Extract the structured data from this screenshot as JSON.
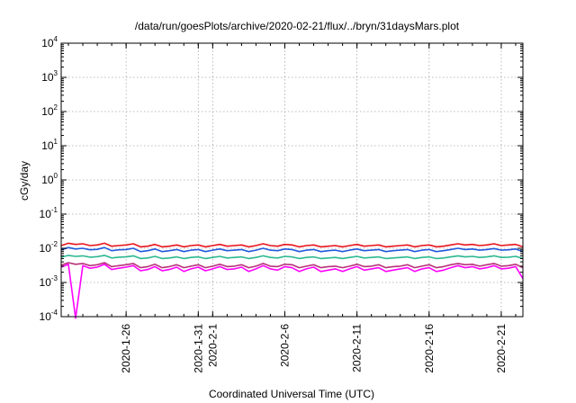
{
  "chart_data": {
    "type": "line",
    "title": "/data/run/goesPlots/archive/2020-02-21/flux/../bryn/31daysMars.plot",
    "xlabel": "Coordinated Universal Time (UTC)",
    "ylabel": "cGy/day",
    "yscale": "log",
    "ylim": [
      0.0001,
      10000
    ],
    "xlim": [
      "2020-01-21T12:00",
      "2020-02-22T12:00"
    ],
    "grid": true,
    "legend": "none",
    "y_ticks": [
      {
        "base": "10",
        "exp": "-4",
        "value": 0.0001
      },
      {
        "base": "10",
        "exp": "-3",
        "value": 0.001
      },
      {
        "base": "10",
        "exp": "-2",
        "value": 0.01
      },
      {
        "base": "10",
        "exp": "-1",
        "value": 0.1
      },
      {
        "base": "10",
        "exp": "0",
        "value": 1
      },
      {
        "base": "10",
        "exp": "1",
        "value": 10
      },
      {
        "base": "10",
        "exp": "2",
        "value": 100
      },
      {
        "base": "10",
        "exp": "3",
        "value": 1000
      },
      {
        "base": "10",
        "exp": "4",
        "value": 10000
      }
    ],
    "x_ticks": [
      {
        "label": "2020-1-26",
        "date": "2020-01-26"
      },
      {
        "label": "2020-1-31",
        "date": "2020-01-31"
      },
      {
        "label": "2020-2-1",
        "date": "2020-02-01"
      },
      {
        "label": "2020-2-6",
        "date": "2020-02-06"
      },
      {
        "label": "2020-2-11",
        "date": "2020-02-11"
      },
      {
        "label": "2020-2-16",
        "date": "2020-02-16"
      },
      {
        "label": "2020-2-21",
        "date": "2020-02-21"
      }
    ],
    "x": [
      "2020-01-21T12:00",
      "2020-01-22T00:00",
      "2020-01-22T12:00",
      "2020-01-23T00:00",
      "2020-01-23T12:00",
      "2020-01-24T00:00",
      "2020-01-24T12:00",
      "2020-01-25T00:00",
      "2020-01-25T12:00",
      "2020-01-26T00:00",
      "2020-01-26T12:00",
      "2020-01-27T00:00",
      "2020-01-27T12:00",
      "2020-01-28T00:00",
      "2020-01-28T12:00",
      "2020-01-29T00:00",
      "2020-01-29T12:00",
      "2020-01-30T00:00",
      "2020-01-30T12:00",
      "2020-01-31T00:00",
      "2020-01-31T12:00",
      "2020-02-01T00:00",
      "2020-02-01T12:00",
      "2020-02-02T00:00",
      "2020-02-02T12:00",
      "2020-02-03T00:00",
      "2020-02-03T12:00",
      "2020-02-04T00:00",
      "2020-02-04T12:00",
      "2020-02-05T00:00",
      "2020-02-05T12:00",
      "2020-02-06T00:00",
      "2020-02-06T12:00",
      "2020-02-07T00:00",
      "2020-02-07T12:00",
      "2020-02-08T00:00",
      "2020-02-08T12:00",
      "2020-02-09T00:00",
      "2020-02-09T12:00",
      "2020-02-10T00:00",
      "2020-02-10T12:00",
      "2020-02-11T00:00",
      "2020-02-11T12:00",
      "2020-02-12T00:00",
      "2020-02-12T12:00",
      "2020-02-13T00:00",
      "2020-02-13T12:00",
      "2020-02-14T00:00",
      "2020-02-14T12:00",
      "2020-02-15T00:00",
      "2020-02-15T12:00",
      "2020-02-16T00:00",
      "2020-02-16T12:00",
      "2020-02-17T00:00",
      "2020-02-17T12:00",
      "2020-02-18T00:00",
      "2020-02-18T12:00",
      "2020-02-19T00:00",
      "2020-02-19T12:00",
      "2020-02-20T00:00",
      "2020-02-20T12:00",
      "2020-02-21T00:00",
      "2020-02-21T12:00",
      "2020-02-22T00:00",
      "2020-02-22T12:00"
    ],
    "series": [
      {
        "color": "#e8141c",
        "values": [
          0.012,
          0.014,
          0.013,
          0.0135,
          0.012,
          0.0125,
          0.014,
          0.0115,
          0.012,
          0.0125,
          0.0135,
          0.011,
          0.0115,
          0.013,
          0.011,
          0.0115,
          0.0125,
          0.011,
          0.012,
          0.0125,
          0.011,
          0.012,
          0.013,
          0.0115,
          0.012,
          0.0125,
          0.011,
          0.012,
          0.0135,
          0.012,
          0.0115,
          0.013,
          0.0125,
          0.011,
          0.012,
          0.0125,
          0.011,
          0.0115,
          0.012,
          0.011,
          0.012,
          0.013,
          0.0115,
          0.012,
          0.0125,
          0.011,
          0.0115,
          0.012,
          0.0125,
          0.011,
          0.012,
          0.0125,
          0.011,
          0.0115,
          0.0125,
          0.0135,
          0.0125,
          0.013,
          0.012,
          0.0125,
          0.0135,
          0.012,
          0.0125,
          0.013,
          0.011
        ]
      },
      {
        "color": "#1f5adc",
        "values": [
          0.009,
          0.0105,
          0.0095,
          0.01,
          0.009,
          0.0093,
          0.0105,
          0.0085,
          0.009,
          0.0092,
          0.01,
          0.008,
          0.0085,
          0.0095,
          0.008,
          0.0085,
          0.0092,
          0.008,
          0.0088,
          0.0092,
          0.008,
          0.0088,
          0.0095,
          0.0085,
          0.0088,
          0.0092,
          0.008,
          0.0088,
          0.01,
          0.0088,
          0.0085,
          0.0095,
          0.0092,
          0.008,
          0.0088,
          0.0092,
          0.008,
          0.0085,
          0.0088,
          0.008,
          0.0088,
          0.0095,
          0.0085,
          0.0088,
          0.0092,
          0.008,
          0.0085,
          0.0088,
          0.0092,
          0.008,
          0.0088,
          0.0092,
          0.008,
          0.0085,
          0.0092,
          0.01,
          0.0092,
          0.0095,
          0.0088,
          0.0092,
          0.0098,
          0.0088,
          0.009,
          0.0095,
          0.008
        ]
      },
      {
        "color": "#2ab890",
        "values": [
          0.0055,
          0.0062,
          0.0058,
          0.006,
          0.0055,
          0.0057,
          0.0062,
          0.0052,
          0.0055,
          0.0056,
          0.006,
          0.005,
          0.0052,
          0.0058,
          0.005,
          0.0052,
          0.0056,
          0.005,
          0.0054,
          0.0056,
          0.005,
          0.0054,
          0.0058,
          0.0052,
          0.0054,
          0.0056,
          0.005,
          0.0054,
          0.006,
          0.0054,
          0.0052,
          0.0058,
          0.0056,
          0.005,
          0.0054,
          0.0056,
          0.005,
          0.0052,
          0.0054,
          0.005,
          0.0054,
          0.0058,
          0.0052,
          0.0054,
          0.0056,
          0.005,
          0.0052,
          0.0054,
          0.0056,
          0.005,
          0.0054,
          0.0056,
          0.005,
          0.0052,
          0.0056,
          0.006,
          0.0056,
          0.0058,
          0.0054,
          0.0056,
          0.006,
          0.0054,
          0.0055,
          0.0058,
          0.005
        ]
      },
      {
        "color": "#b8307a",
        "values": [
          0.0032,
          0.0038,
          0.0034,
          0.0036,
          0.0031,
          0.0033,
          0.0038,
          0.0029,
          0.0031,
          0.0033,
          0.0036,
          0.0027,
          0.0029,
          0.0034,
          0.0027,
          0.0029,
          0.0033,
          0.0027,
          0.003,
          0.0033,
          0.0027,
          0.003,
          0.0034,
          0.0029,
          0.003,
          0.0033,
          0.0027,
          0.003,
          0.0036,
          0.003,
          0.0029,
          0.0034,
          0.0033,
          0.0027,
          0.003,
          0.0033,
          0.0027,
          0.0029,
          0.003,
          0.0027,
          0.003,
          0.0034,
          0.0029,
          0.003,
          0.0033,
          0.0027,
          0.0029,
          0.003,
          0.0033,
          0.0027,
          0.003,
          0.0033,
          0.0027,
          0.0029,
          0.0033,
          0.0036,
          0.0033,
          0.0034,
          0.003,
          0.0033,
          0.0036,
          0.003,
          0.0031,
          0.0034,
          0.0027
        ]
      },
      {
        "color": "#ff00ff",
        "values": [
          0.0028,
          0.0034,
          9e-05,
          0.0031,
          0.0026,
          0.0028,
          0.0034,
          0.0024,
          0.0026,
          0.0028,
          0.0031,
          0.0022,
          0.0024,
          0.0029,
          0.0022,
          0.0024,
          0.0028,
          0.0021,
          0.0025,
          0.0028,
          0.0022,
          0.0025,
          0.0029,
          0.0024,
          0.0025,
          0.0028,
          0.0021,
          0.0025,
          0.0031,
          0.0025,
          0.0023,
          0.0029,
          0.0027,
          0.0021,
          0.0025,
          0.0028,
          0.0021,
          0.0023,
          0.0025,
          0.0021,
          0.0025,
          0.0029,
          0.0023,
          0.0025,
          0.0027,
          0.0021,
          0.0023,
          0.0025,
          0.0027,
          0.0021,
          0.0025,
          0.0027,
          0.0021,
          0.0023,
          0.0027,
          0.0031,
          0.0027,
          0.0029,
          0.0025,
          0.0027,
          0.0031,
          0.0025,
          0.0026,
          0.0029,
          0.0013
        ]
      }
    ]
  }
}
